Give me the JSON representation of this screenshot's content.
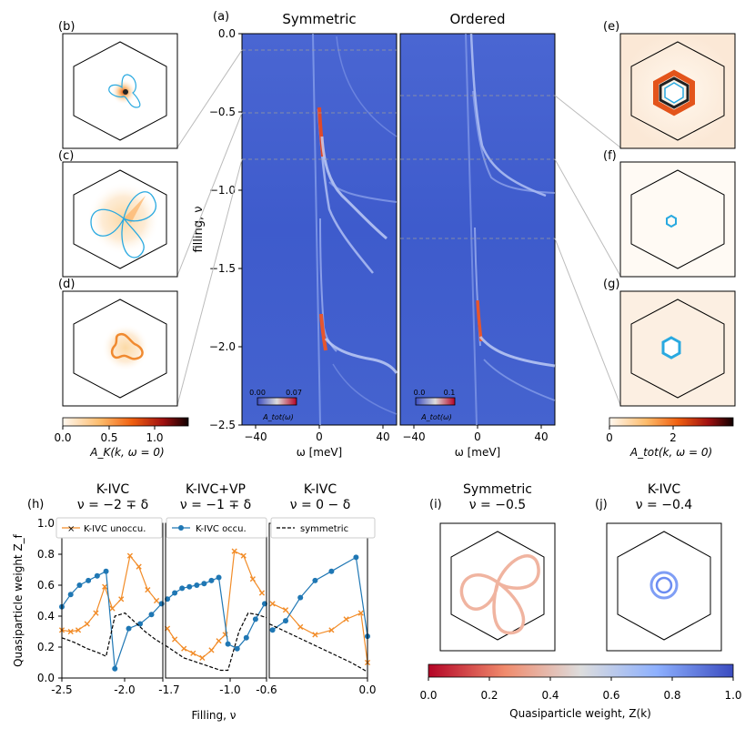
{
  "panel_labels": {
    "a": "(a)",
    "b": "(b)",
    "c": "(c)",
    "d": "(d)",
    "e": "(e)",
    "f": "(f)",
    "g": "(g)",
    "h": "(h)",
    "i": "(i)",
    "j": "(j)"
  },
  "top": {
    "title_symmetric": "Symmetric",
    "title_ordered": "Ordered",
    "ylabel": "filling, ν",
    "xlabel_left": "ω [meV]",
    "xlabel_right": "ω [meV]",
    "y_ticks": [
      "0.0",
      "−0.5",
      "−1.0",
      "−1.5",
      "−2.0",
      "−2.5"
    ],
    "x_ticks_left": [
      "−40",
      "0",
      "40"
    ],
    "x_ticks_right": [
      "−40",
      "0",
      "40"
    ],
    "cbar_left": {
      "min": "0.00",
      "max": "0.07",
      "label": "A_tot(ω)"
    },
    "cbar_right": {
      "min": "0.0",
      "max": "0.1",
      "label": "A_tot(ω)"
    },
    "cbar_AK": {
      "ticks": [
        "0.0",
        "0.5",
        "1.0"
      ],
      "label": "A_K(k, ω = 0)"
    },
    "cbar_Atot": {
      "ticks": [
        "0",
        "2"
      ],
      "label": "A_tot(k, ω = 0)"
    }
  },
  "chart_data": {
    "type": "line",
    "ylabel": "Quasiparticle weight Z_f",
    "xlabel": "Filling, ν",
    "ylim": [
      0.0,
      1.0
    ],
    "y_ticks": [
      "0.0",
      "0.2",
      "0.4",
      "0.6",
      "0.8",
      "1.0"
    ],
    "legend": [
      "K-IVC unoccu.",
      "K-IVC occu.",
      "symmetric"
    ],
    "subplots": [
      {
        "title": "K-IVC",
        "subtitle": "ν = −2 ∓ δ",
        "xlim": [
          -2.5,
          -1.7
        ],
        "x_ticks": [
          "-2.5",
          "-2.0",
          "-1.7"
        ],
        "series": [
          {
            "name": "K-IVC unoccu.",
            "x": [
              -2.5,
              -2.43,
              -2.37,
              -2.3,
              -2.23,
              -2.16,
              -2.1,
              -2.03,
              -1.96,
              -1.89,
              -1.82,
              -1.75
            ],
            "y": [
              0.31,
              0.3,
              0.31,
              0.35,
              0.42,
              0.59,
              0.45,
              0.51,
              0.79,
              0.72,
              0.57,
              0.5
            ]
          },
          {
            "name": "K-IVC occu.",
            "x": [
              -2.5,
              -2.43,
              -2.36,
              -2.29,
              -2.22,
              -2.15,
              -2.08,
              -1.97,
              -1.88,
              -1.79,
              -1.71
            ],
            "y": [
              0.46,
              0.54,
              0.6,
              0.63,
              0.66,
              0.69,
              0.06,
              0.32,
              0.35,
              0.41,
              0.48
            ]
          },
          {
            "name": "symmetric",
            "x": [
              -2.5,
              -2.4,
              -2.3,
              -2.2,
              -2.15,
              -2.08,
              -2.0,
              -1.92,
              -1.84,
              -1.76,
              -1.7
            ],
            "y": [
              0.26,
              0.23,
              0.19,
              0.16,
              0.14,
              0.4,
              0.42,
              0.36,
              0.3,
              0.25,
              0.22
            ]
          }
        ]
      },
      {
        "title": "K-IVC+VP",
        "subtitle": "ν = −1 ∓ δ",
        "xlim": [
          -1.7,
          -0.6
        ],
        "x_ticks": [
          "-1.7",
          "-1.0",
          "-0.6"
        ],
        "series": [
          {
            "name": "K-IVC unoccu.",
            "x": [
              -1.68,
              -1.6,
              -1.5,
              -1.4,
              -1.3,
              -1.2,
              -1.12,
              -1.05,
              -0.95,
              -0.85,
              -0.75,
              -0.65
            ],
            "y": [
              0.32,
              0.25,
              0.19,
              0.16,
              0.13,
              0.18,
              0.24,
              0.28,
              0.82,
              0.79,
              0.64,
              0.55
            ]
          },
          {
            "name": "K-IVC occu.",
            "x": [
              -1.68,
              -1.6,
              -1.52,
              -1.44,
              -1.36,
              -1.28,
              -1.2,
              -1.12,
              -1.02,
              -0.92,
              -0.82,
              -0.72,
              -0.62
            ],
            "y": [
              0.51,
              0.55,
              0.58,
              0.59,
              0.6,
              0.61,
              0.63,
              0.65,
              0.22,
              0.19,
              0.26,
              0.38,
              0.48
            ]
          },
          {
            "name": "symmetric",
            "x": [
              -1.7,
              -1.5,
              -1.3,
              -1.1,
              -1.02,
              -0.9,
              -0.8,
              -0.7,
              -0.6
            ],
            "y": [
              0.21,
              0.13,
              0.09,
              0.05,
              0.05,
              0.3,
              0.42,
              0.41,
              0.39
            ]
          }
        ]
      },
      {
        "title": "K-IVC",
        "subtitle": "ν = 0 − δ",
        "xlim": [
          -0.6,
          0.0
        ],
        "x_ticks": [
          "-0.6",
          "0.0"
        ],
        "series": [
          {
            "name": "K-IVC unoccu.",
            "x": [
              -0.58,
              -0.5,
              -0.41,
              -0.32,
              -0.22,
              -0.13,
              -0.04,
              0.0
            ],
            "y": [
              0.48,
              0.44,
              0.33,
              0.28,
              0.31,
              0.38,
              0.42,
              0.1
            ]
          },
          {
            "name": "K-IVC occu.",
            "x": [
              -0.58,
              -0.5,
              -0.41,
              -0.32,
              -0.22,
              -0.07,
              0.0
            ],
            "y": [
              0.31,
              0.37,
              0.52,
              0.63,
              0.69,
              0.78,
              0.27
            ]
          },
          {
            "name": "symmetric",
            "x": [
              -0.6,
              -0.5,
              -0.4,
              -0.3,
              -0.2,
              -0.1,
              0.0
            ],
            "y": [
              0.35,
              0.3,
              0.25,
              0.2,
              0.15,
              0.1,
              0.04
            ]
          }
        ]
      }
    ]
  },
  "bottom_right": {
    "i_title": "Symmetric",
    "i_subtitle": "ν = −0.5",
    "j_title": "K-IVC",
    "j_subtitle": "ν = −0.4",
    "cbar_ticks": [
      "0.0",
      "0.2",
      "0.4",
      "0.6",
      "0.8",
      "1.0"
    ],
    "cbar_label": "Quasiparticle weight, Z(k)"
  }
}
